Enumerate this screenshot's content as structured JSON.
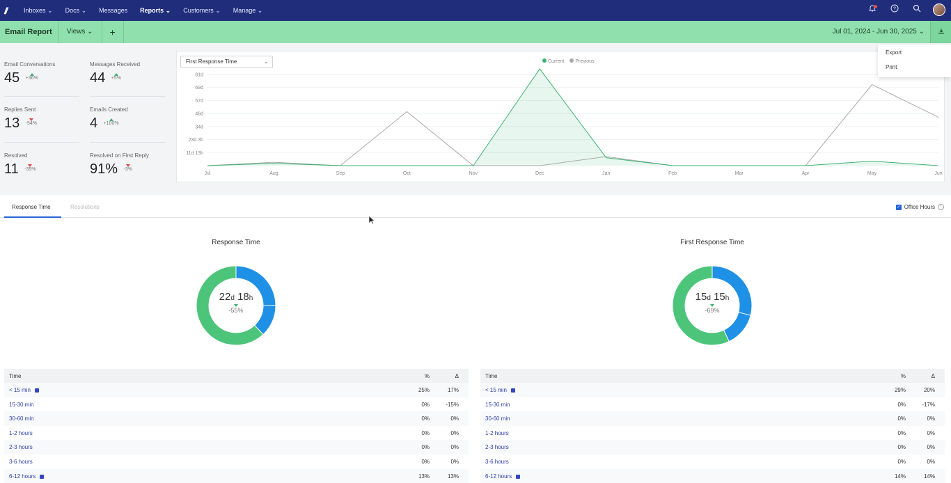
{
  "nav": {
    "logo": "//",
    "items": [
      "Inboxes ⌄",
      "Docs ⌄",
      "Messages",
      "Reports ⌄",
      "Customers ⌄",
      "Manage ⌄"
    ],
    "icons": [
      "bell-icon",
      "help-icon",
      "search-icon",
      "avatar"
    ]
  },
  "subbar": {
    "title": "Email Report",
    "views": "Views ⌄",
    "add": "+",
    "date_range": "Jul 01, 2024 - Jun 30, 2025 ⌄",
    "download_icon": "download-icon"
  },
  "menu": {
    "items": [
      "Export",
      "Print"
    ]
  },
  "stats": [
    {
      "label": "Email Conversations",
      "value": "45",
      "change": "+36%",
      "dir": "up"
    },
    {
      "label": "Messages Received",
      "value": "44",
      "change": "+5%",
      "dir": "up"
    },
    {
      "label": "Replies Sent",
      "value": "13",
      "change": "-54%",
      "dir": "down"
    },
    {
      "label": "Emails Created",
      "value": "4",
      "change": "+100%",
      "dir": "up"
    },
    {
      "label": "Resolved",
      "value": "11",
      "change": "-35%",
      "dir": "down"
    },
    {
      "label": "Resolved on First Reply",
      "value": "91%",
      "change": "-3%",
      "dir": "down"
    }
  ],
  "chart_select": "First Response Time",
  "chart_data": {
    "type": "line",
    "categories": [
      "Jul",
      "Aug",
      "Sep",
      "Oct",
      "Nov",
      "Dec",
      "Jan",
      "Feb",
      "Mar",
      "Apr",
      "May",
      "Jun"
    ],
    "y_tick_labels": [
      "11d 13h",
      "23d 3h",
      "34d",
      "46d",
      "57d",
      "69d",
      "81d"
    ],
    "ylim": [
      0,
      81
    ],
    "series": [
      {
        "name": "Current",
        "color": "#3cb371",
        "values": [
          0,
          2,
          0,
          0,
          0,
          86,
          7,
          0,
          0,
          0,
          4,
          0
        ]
      },
      {
        "name": "Previous",
        "color": "#999999",
        "values": [
          0,
          3,
          0,
          48,
          0,
          0,
          8,
          0,
          0,
          0,
          72,
          43
        ]
      }
    ],
    "legend": "top"
  },
  "tabs": {
    "response": "Response Time",
    "resolutions": "Resolutions",
    "office_hours": "Office Hours"
  },
  "donuts": [
    {
      "title": "Response Time",
      "days": "22",
      "hours": "18",
      "d": "d",
      "h": "h",
      "pct": "-55%",
      "slices": [
        {
          "value": 25,
          "color": "#1e90e6"
        },
        {
          "value": 13,
          "color": "#1e90e6"
        },
        {
          "value": 62,
          "color": "#4cc57a"
        }
      ]
    },
    {
      "title": "First Response Time",
      "days": "15",
      "hours": "15",
      "d": "d",
      "h": "h",
      "pct": "-69%",
      "slices": [
        {
          "value": 29,
          "color": "#1e90e6"
        },
        {
          "value": 14,
          "color": "#1e90e6"
        },
        {
          "value": 57,
          "color": "#4cc57a"
        }
      ]
    }
  ],
  "tables": [
    {
      "headers": [
        "Time",
        "%",
        "Δ"
      ],
      "rows": [
        [
          "< 15 min",
          "25%",
          "17%",
          true
        ],
        [
          "15-30 min",
          "0%",
          "-15%",
          false
        ],
        [
          "30-60 min",
          "0%",
          "0%",
          false
        ],
        [
          "1-2 hours",
          "0%",
          "0%",
          false
        ],
        [
          "2-3 hours",
          "0%",
          "0%",
          false
        ],
        [
          "3-6 hours",
          "0%",
          "0%",
          false
        ],
        [
          "6-12 hours",
          "13%",
          "13%",
          true
        ]
      ]
    },
    {
      "headers": [
        "Time",
        "%",
        "Δ"
      ],
      "rows": [
        [
          "< 15 min",
          "29%",
          "20%",
          true
        ],
        [
          "15-30 min",
          "0%",
          "-17%",
          false
        ],
        [
          "30-60 min",
          "0%",
          "0%",
          false
        ],
        [
          "1-2 hours",
          "0%",
          "0%",
          false
        ],
        [
          "2-3 hours",
          "0%",
          "0%",
          false
        ],
        [
          "3-6 hours",
          "0%",
          "0%",
          false
        ],
        [
          "6-12 hours",
          "14%",
          "14%",
          true
        ]
      ]
    }
  ]
}
